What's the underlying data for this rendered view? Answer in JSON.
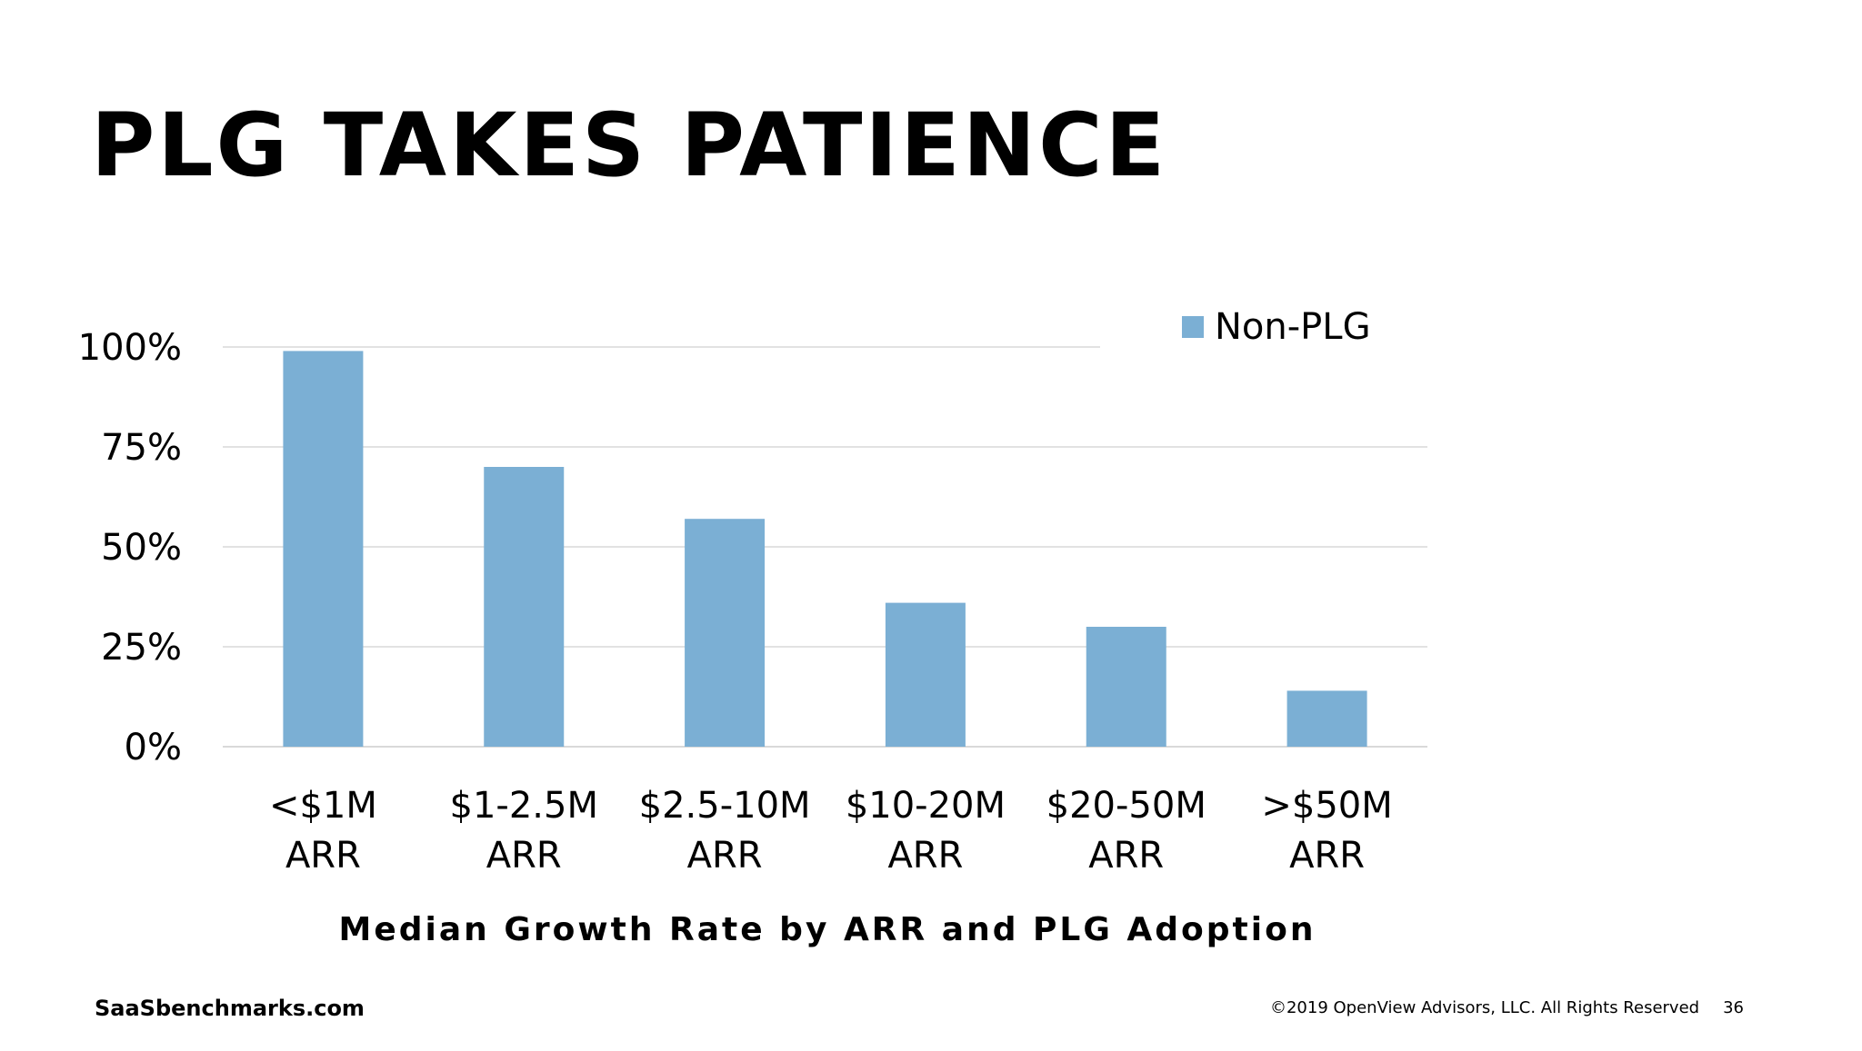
{
  "slide": {
    "title": "PLG TAKES PATIENCE",
    "footer_site": "SaaSbenchmarks.com",
    "footer_copyright": "©2019 OpenView Advisors, LLC. All Rights Reserved",
    "page_number": "36"
  },
  "chart_data": {
    "type": "bar",
    "title": "Median Growth Rate by ARR and PLG Adoption",
    "categories": [
      [
        "<$1M",
        "ARR"
      ],
      [
        "$1-2.5M",
        "ARR"
      ],
      [
        "$2.5-10M",
        "ARR"
      ],
      [
        "$10-20M",
        "ARR"
      ],
      [
        "$20-50M",
        "ARR"
      ],
      [
        ">$50M",
        "ARR"
      ]
    ],
    "series": [
      {
        "name": "Non-PLG",
        "color": "#7bafd4",
        "values": [
          99,
          70,
          57,
          36,
          30,
          14
        ]
      }
    ],
    "ylim": [
      0,
      100
    ],
    "yticks": [
      0,
      25,
      50,
      75,
      100
    ],
    "ytick_labels": [
      "0%",
      "25%",
      "50%",
      "75%",
      "100%"
    ],
    "xlabel": "",
    "ylabel": "",
    "grid": true,
    "legend": "top-right",
    "gridline_color": "#d9d9d9"
  }
}
